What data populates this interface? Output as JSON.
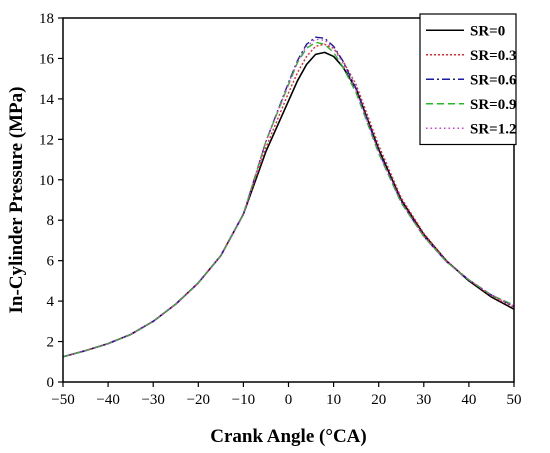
{
  "chart_data": {
    "type": "line",
    "xlabel": "Crank Angle (°CA)",
    "ylabel": "In-Cylinder Pressure (MPa)",
    "xlim": [
      -50,
      50
    ],
    "ylim": [
      0,
      18
    ],
    "xticks": [
      -50,
      -40,
      -30,
      -20,
      -10,
      0,
      10,
      20,
      30,
      40,
      50
    ],
    "yticks": [
      0,
      2,
      4,
      6,
      8,
      10,
      12,
      14,
      16,
      18
    ],
    "xtick_labels": [
      "−50",
      "−40",
      "−30",
      "−20",
      "−10",
      "0",
      "10",
      "20",
      "30",
      "40",
      "50"
    ],
    "ytick_labels": [
      "0",
      "2",
      "4",
      "6",
      "8",
      "10",
      "12",
      "14",
      "16",
      "18"
    ],
    "grid": false,
    "legend_position": "top-right",
    "x": [
      -50,
      -45,
      -40,
      -35,
      -30,
      -25,
      -20,
      -15,
      -10,
      -5,
      0,
      2,
      4,
      6,
      8,
      10,
      12,
      15,
      20,
      25,
      30,
      35,
      40,
      45,
      50
    ],
    "series": [
      {
        "name": "SR=0",
        "color": "#000000",
        "dash": "solid",
        "values": [
          1.25,
          1.55,
          1.9,
          2.35,
          3.0,
          3.85,
          4.9,
          6.25,
          8.3,
          11.4,
          13.9,
          14.9,
          15.7,
          16.2,
          16.3,
          16.1,
          15.6,
          14.5,
          11.5,
          9.0,
          7.3,
          6.0,
          5.0,
          4.2,
          3.6
        ]
      },
      {
        "name": "SR=0.3",
        "color": "#e8242a",
        "dash": "2,2",
        "values": [
          1.25,
          1.55,
          1.9,
          2.35,
          3.0,
          3.85,
          4.9,
          6.25,
          8.3,
          11.6,
          14.3,
          15.3,
          16.1,
          16.6,
          16.7,
          16.5,
          15.9,
          14.7,
          11.7,
          9.1,
          7.35,
          6.0,
          5.05,
          4.25,
          3.7
        ]
      },
      {
        "name": "SR=0.6",
        "color": "#1a1aa8",
        "dash": "8,3,2,3",
        "values": [
          1.25,
          1.55,
          1.9,
          2.35,
          3.0,
          3.85,
          4.9,
          6.25,
          8.3,
          11.9,
          14.8,
          15.9,
          16.7,
          17.05,
          17.0,
          16.6,
          15.9,
          14.5,
          11.4,
          8.9,
          7.2,
          5.95,
          5.05,
          4.3,
          3.75
        ]
      },
      {
        "name": "SR=0.9",
        "color": "#22bb22",
        "dash": "7,4",
        "values": [
          1.25,
          1.55,
          1.9,
          2.35,
          3.0,
          3.85,
          4.9,
          6.25,
          8.3,
          11.9,
          14.7,
          15.8,
          16.5,
          16.8,
          16.7,
          16.3,
          15.6,
          14.3,
          11.3,
          8.85,
          7.2,
          5.95,
          5.05,
          4.3,
          3.8
        ]
      },
      {
        "name": "SR=1.2",
        "color": "#d63ad6",
        "dash": "1.5,3",
        "values": [
          1.25,
          1.55,
          1.9,
          2.35,
          3.0,
          3.85,
          4.9,
          6.25,
          8.3,
          11.9,
          14.75,
          15.85,
          16.6,
          16.95,
          16.9,
          16.5,
          15.8,
          14.4,
          11.35,
          8.9,
          7.2,
          5.95,
          5.05,
          4.3,
          3.75
        ]
      }
    ]
  }
}
